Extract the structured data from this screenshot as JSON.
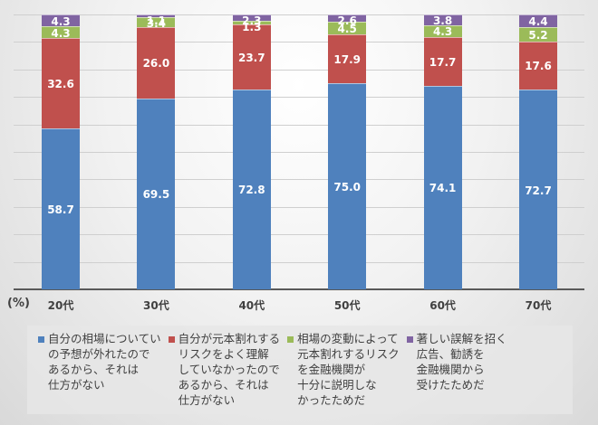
{
  "chart_data": {
    "type": "bar",
    "stacked": true,
    "title": "",
    "xlabel": "",
    "ylabel": "(%)",
    "ylim": [
      0,
      100
    ],
    "grid": true,
    "legend_position": "bottom",
    "categories": [
      "20代",
      "30代",
      "40代",
      "50代",
      "60代",
      "70代"
    ],
    "series": [
      {
        "name": "自分の相場についての予想が外れたのであるから、それは仕方がない",
        "color": "#4f81bd",
        "values": [
          58.7,
          69.5,
          72.8,
          75.0,
          74.1,
          72.7
        ]
      },
      {
        "name": "自分が元本割れするリスクをよく理解していなかったのであるから、それは仕方がない",
        "color": "#c0504d",
        "values": [
          32.6,
          26.0,
          23.7,
          17.9,
          17.7,
          17.6
        ]
      },
      {
        "name": "相場の変動によって元本割れするリスクを金融機関が十分に説明しなかったためだ",
        "color": "#9bbb59",
        "values": [
          4.3,
          3.4,
          1.3,
          4.5,
          4.3,
          5.2
        ]
      },
      {
        "name": "著しい誤解を招く広告、勧誘を金融機関から受けたためだ",
        "color": "#8064a2",
        "values": [
          4.3,
          1.1,
          2.3,
          2.6,
          3.8,
          4.4
        ]
      }
    ]
  },
  "axis": {
    "unit_label": "(%)"
  },
  "legend": [
    {
      "text": "自分の相場についてい\nの予想が外れたので\nあるから、それは\n仕方がない",
      "color": "#4f81bd"
    },
    {
      "text": "自分が元本割れする\nリスクをよく理解\nしていなかったので\nあるから、それは\n仕方がない",
      "color": "#c0504d"
    },
    {
      "text": "相場の変動によって\n元本割れするリスク\nを金融機関が\n十分に説明しな\nかったためだ",
      "color": "#9bbb59"
    },
    {
      "text": "著しい誤解を招く\n広告、勧誘を\n金融機関から\n受けたためだ",
      "color": "#8064a2"
    }
  ]
}
